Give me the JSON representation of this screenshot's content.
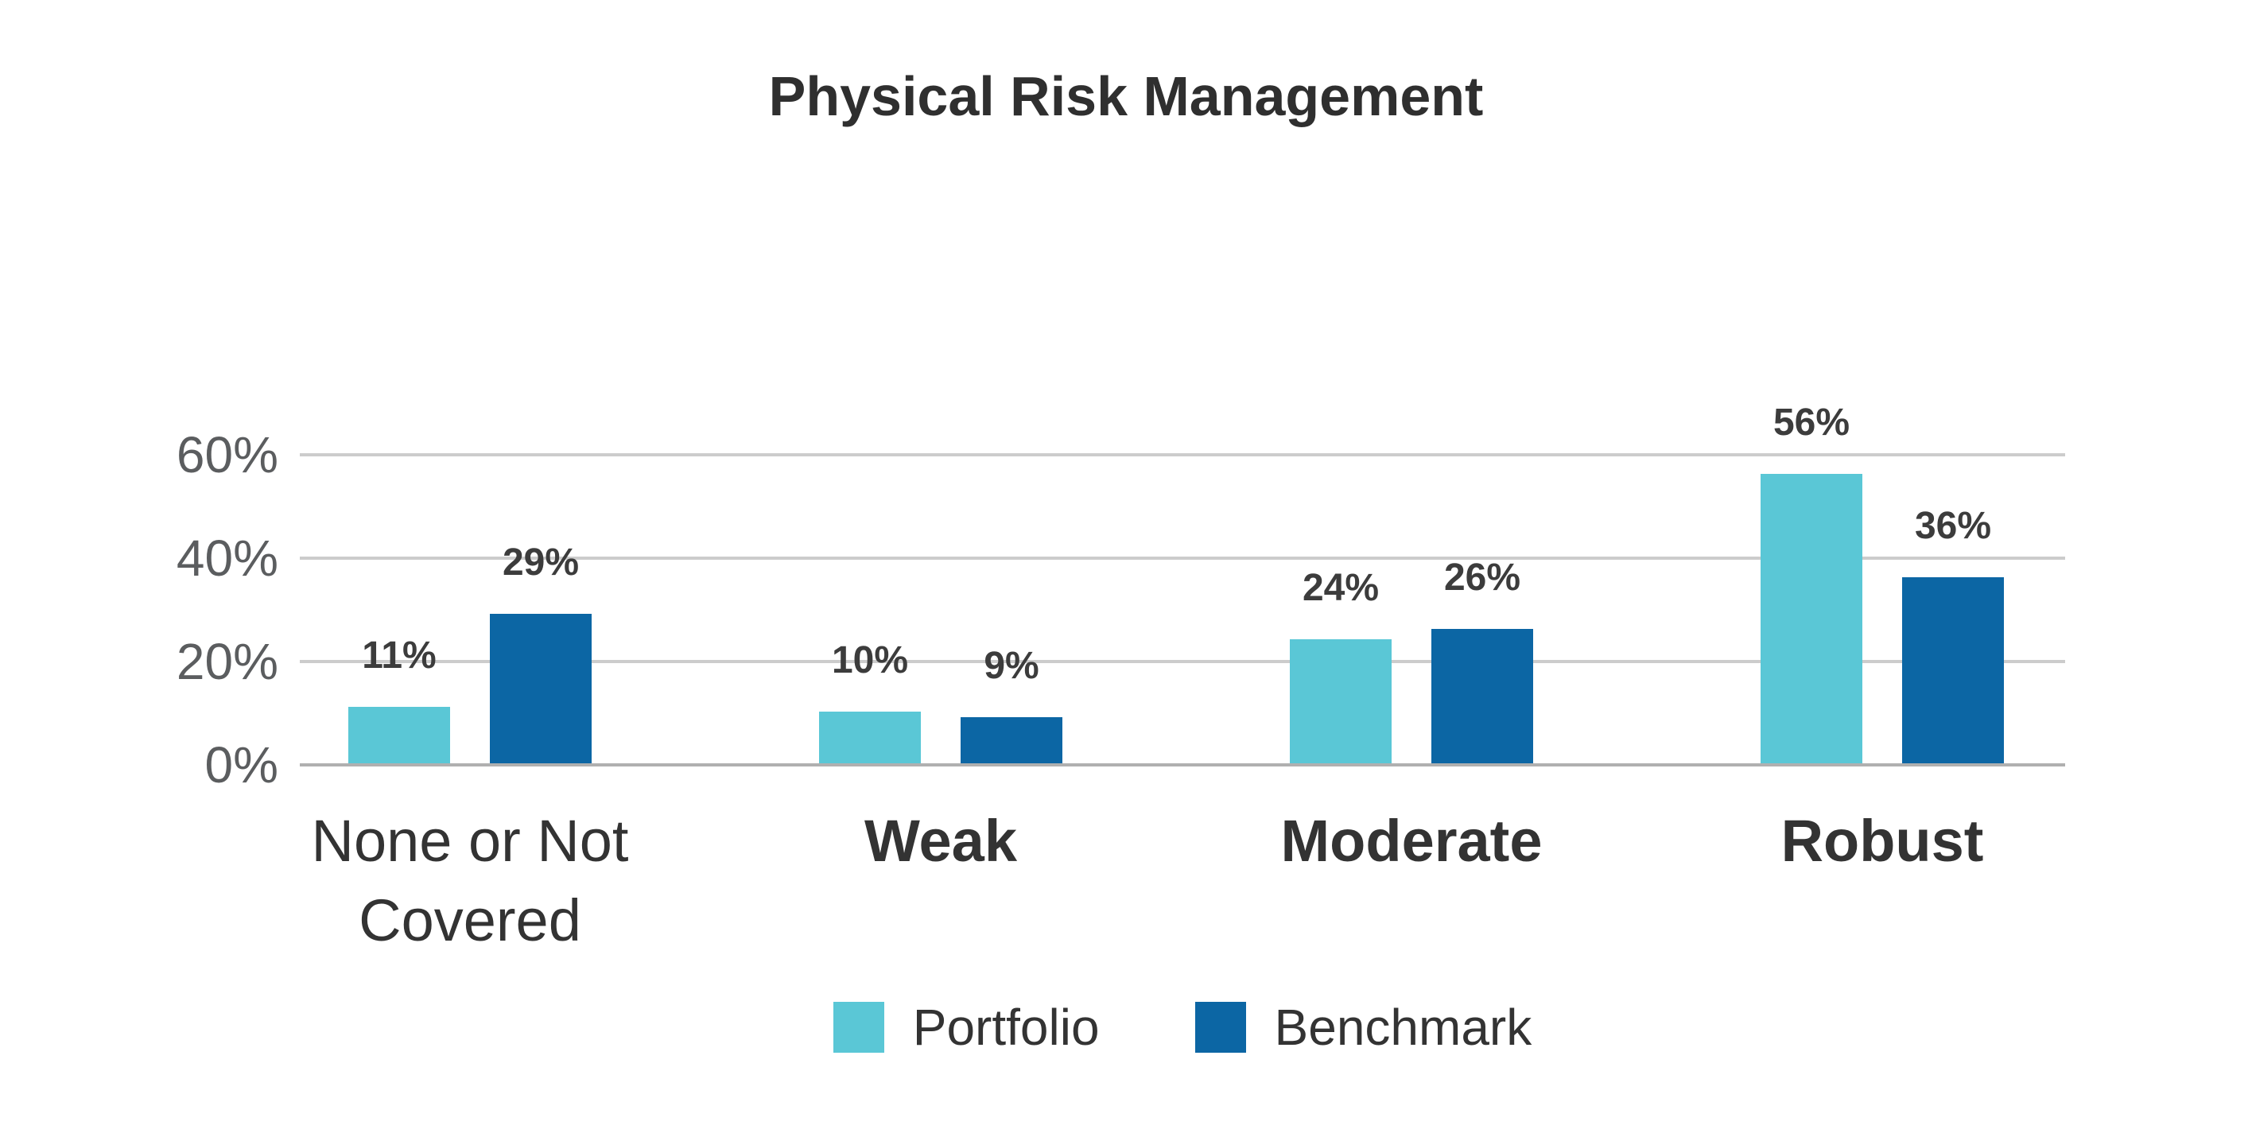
{
  "chart_data": {
    "type": "bar",
    "title": "Physical Risk Management",
    "categories": [
      "None or Not Covered",
      "Weak",
      "Moderate",
      "Robust"
    ],
    "categories_bold": [
      false,
      true,
      true,
      true
    ],
    "series": [
      {
        "name": "Portfolio",
        "color": "#5AC7D6",
        "values": [
          11,
          10,
          24,
          56
        ]
      },
      {
        "name": "Benchmark",
        "color": "#0C66A4",
        "values": [
          29,
          9,
          26,
          36
        ]
      }
    ],
    "data_labels": [
      "11%",
      "29%",
      "10%",
      "9%",
      "24%",
      "26%",
      "56%",
      "36%"
    ],
    "value_suffix": "%",
    "y_ticks": [
      "0%",
      "20%",
      "40%",
      "60%"
    ],
    "y_tick_values": [
      0,
      20,
      40,
      60
    ],
    "ylim": [
      0,
      60
    ],
    "grid": true,
    "legend_position": "bottom"
  },
  "colors": {
    "portfolio": "#5AC7D6",
    "benchmark": "#0C66A4",
    "gridline": "#CCCCCC",
    "baseline": "#B0B0B0",
    "title_text": "#2F2F2F",
    "axis_text": "#5B5D5F",
    "value_label_text": "#3C3C3C",
    "category_text": "#333333"
  }
}
